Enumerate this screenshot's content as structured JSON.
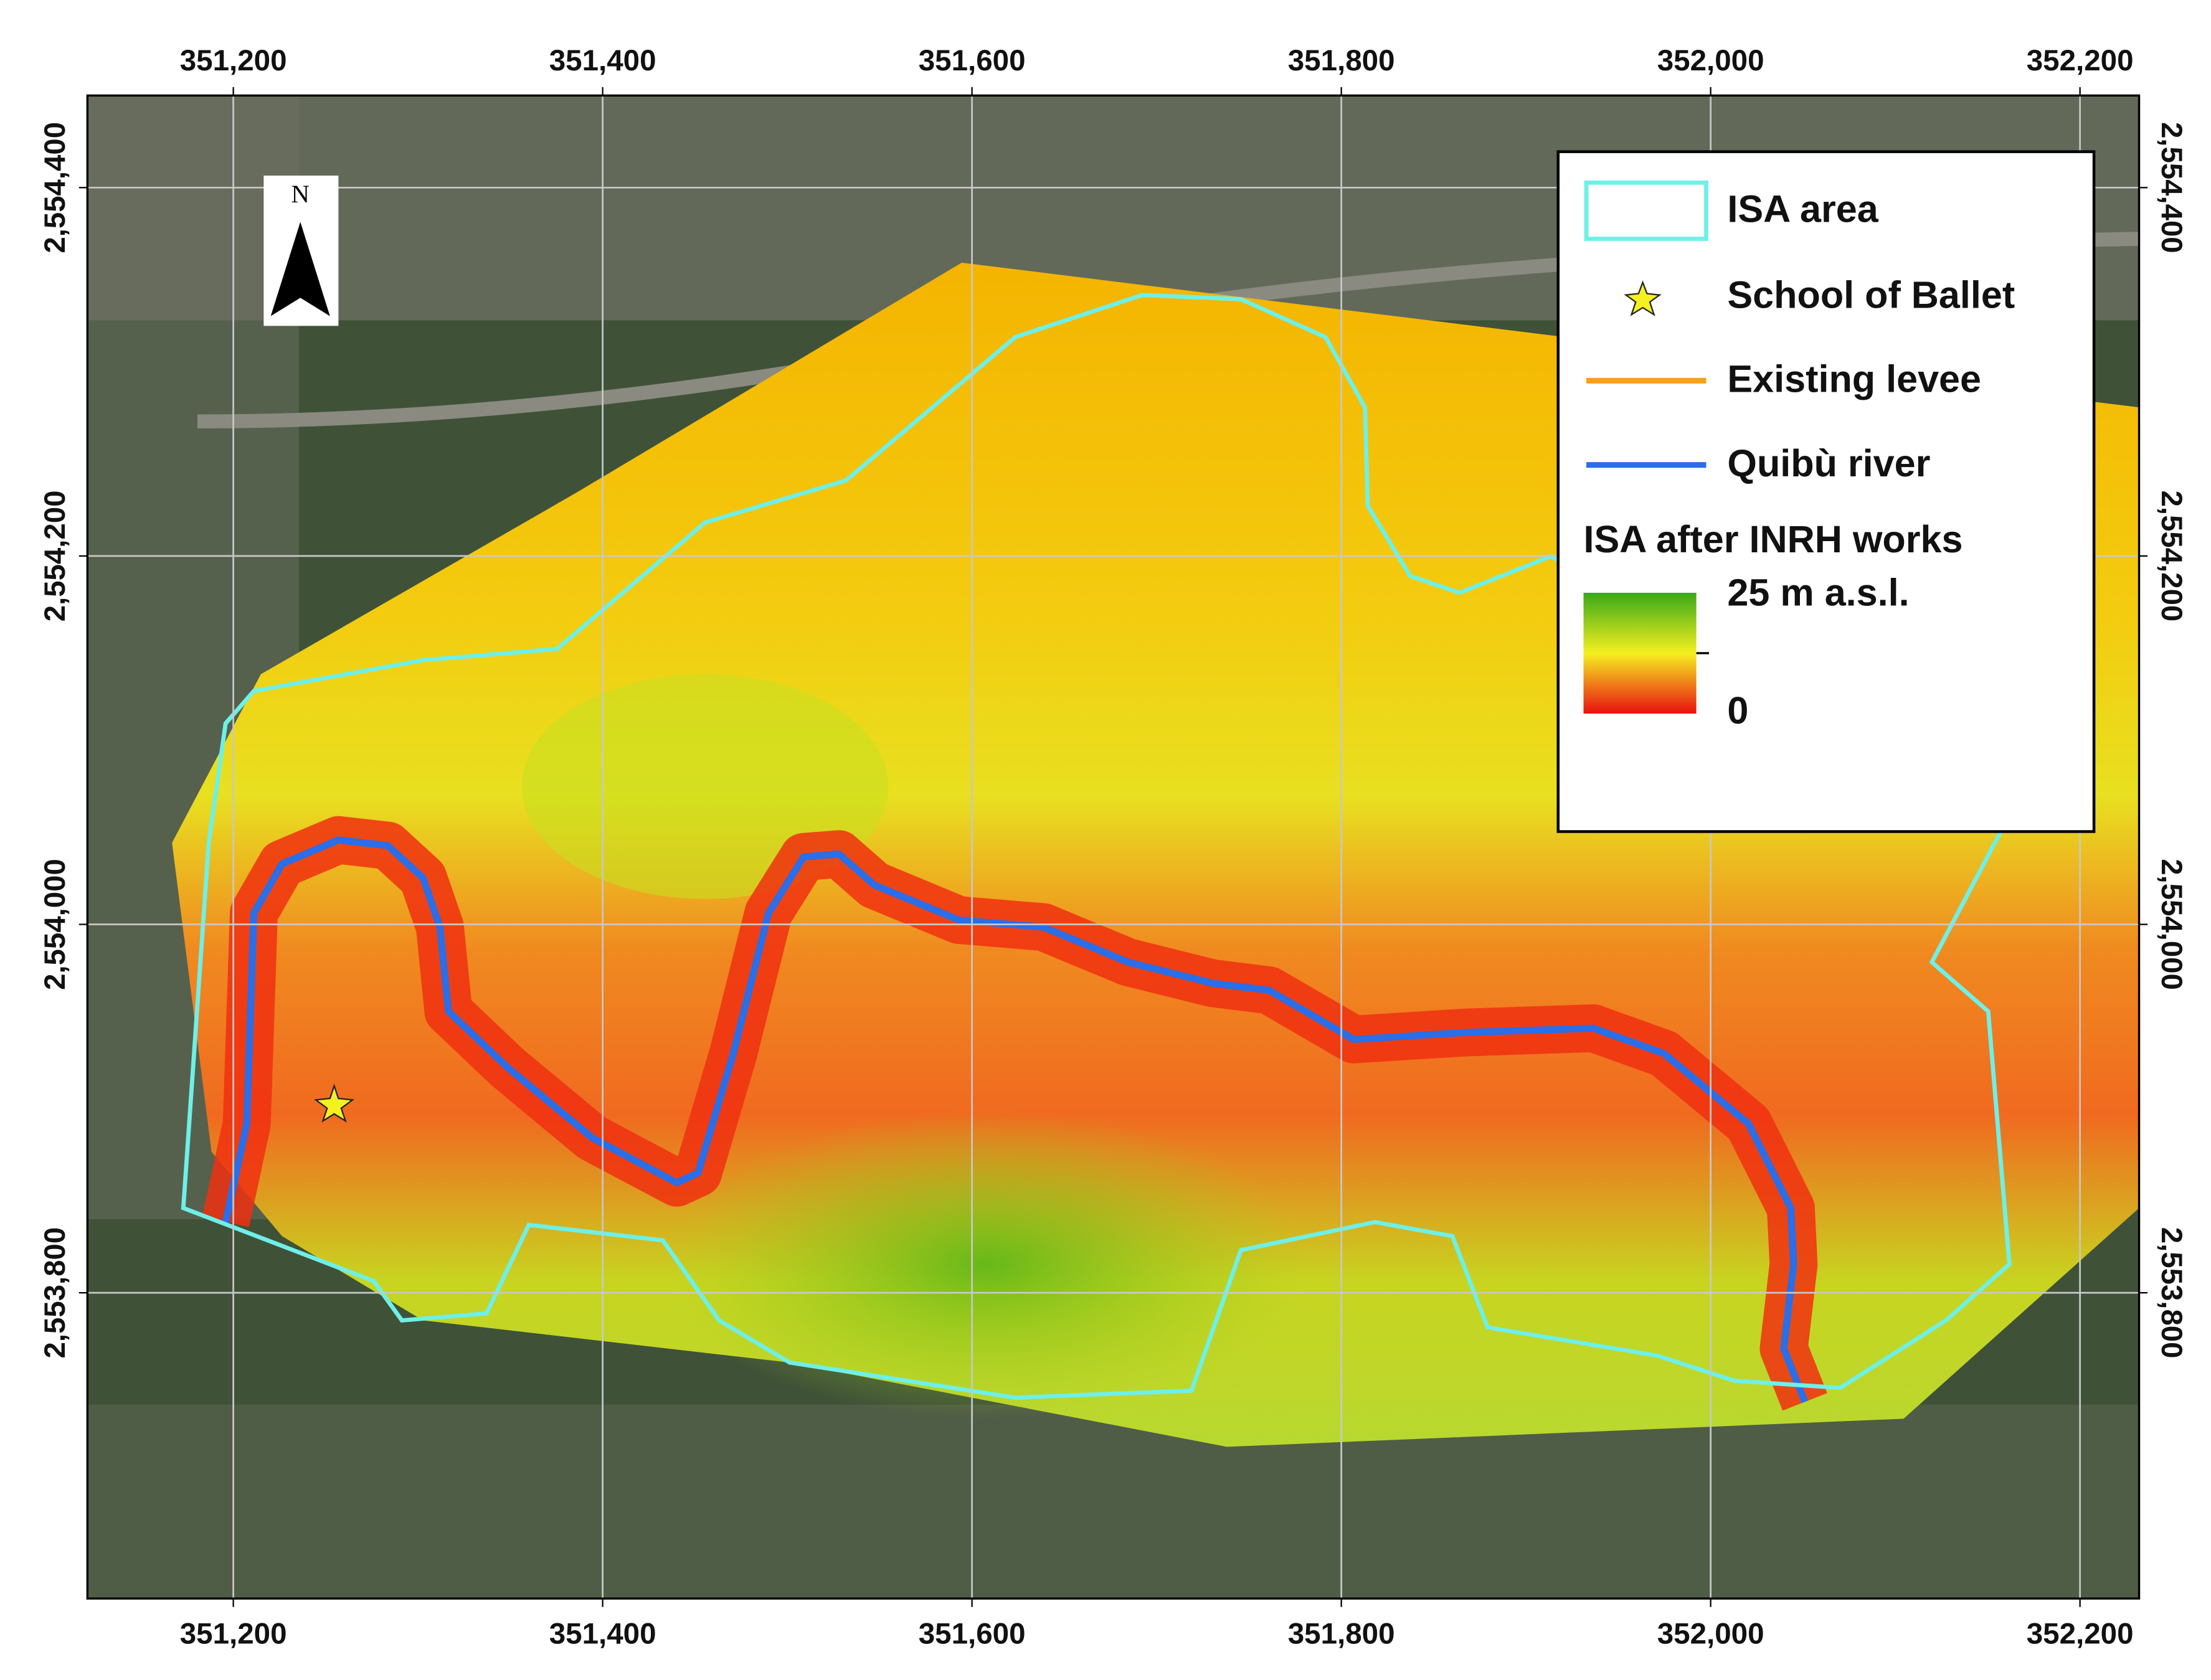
{
  "map": {
    "xlim": [
      351121,
      352232
    ],
    "ylim": [
      2553634,
      2554450
    ],
    "xticks": [
      {
        "value": 351200,
        "label": "351,200"
      },
      {
        "value": 351400,
        "label": "351,400"
      },
      {
        "value": 351600,
        "label": "351,600"
      },
      {
        "value": 351800,
        "label": "351,800"
      },
      {
        "value": 352000,
        "label": "352,000"
      },
      {
        "value": 352200,
        "label": "352,200"
      }
    ],
    "yticks": [
      {
        "value": 2553800,
        "label": "2,553,800"
      },
      {
        "value": 2554000,
        "label": "2,554,000"
      },
      {
        "value": 2554200,
        "label": "2,554,200"
      },
      {
        "value": 2554400,
        "label": "2,554,400"
      }
    ],
    "north": "N",
    "legend": {
      "items": [
        "ISA area",
        "School of Ballet",
        "Existing levee",
        "Quibù river"
      ],
      "colorbar_title": "ISA after INRH works",
      "colorbar_max": "25 m a.s.l.",
      "colorbar_min": "0"
    }
  }
}
